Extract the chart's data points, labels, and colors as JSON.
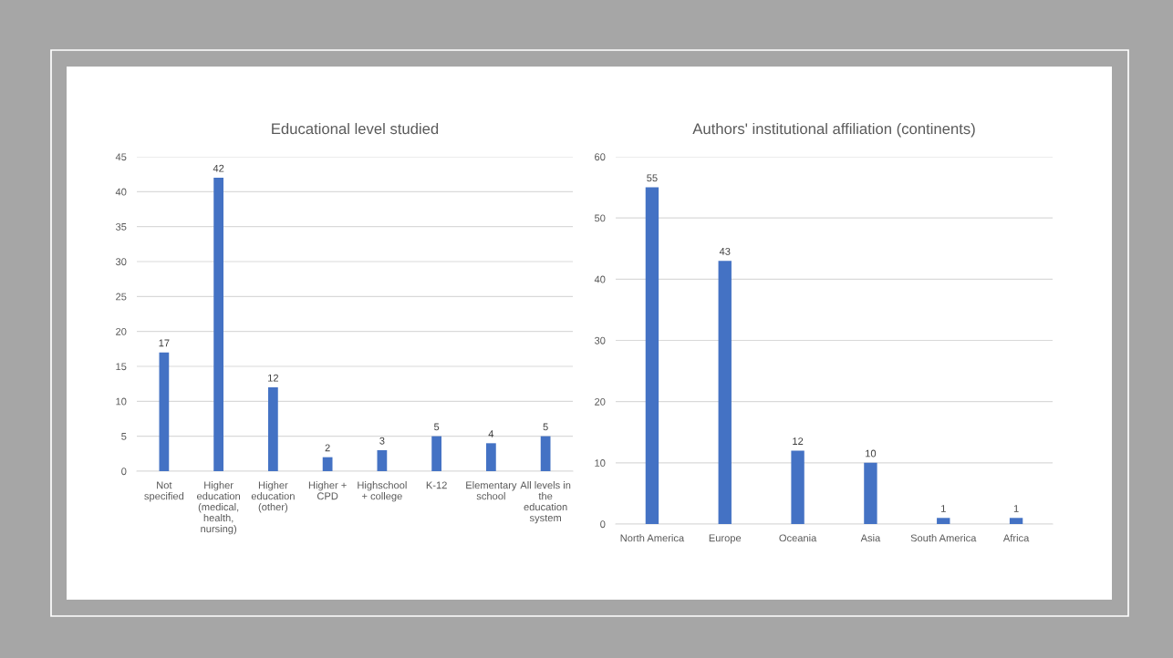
{
  "chart_data": [
    {
      "type": "bar",
      "title": "Educational level studied",
      "categories": [
        "Not\nspecified",
        "Higher\neducation\n(medical,\nhealth,\nnursing)",
        "Higher\neducation\n(other)",
        "Higher +\nCPD",
        "Highschool\n+ college",
        "K-12",
        "Elementary\nschool",
        "All levels in\nthe\neducation\nsystem"
      ],
      "values": [
        17,
        42,
        12,
        2,
        3,
        5,
        4,
        5
      ],
      "color": "#4472c4",
      "ylim": [
        0,
        45
      ],
      "yticks": [
        0,
        5,
        10,
        15,
        20,
        25,
        30,
        35,
        40,
        45
      ],
      "grid": "y",
      "data_labels": true
    },
    {
      "type": "bar",
      "title": "Authors' institutional affiliation (continents)",
      "categories": [
        "North America",
        "Europe",
        "Oceania",
        "Asia",
        "South America",
        "Africa"
      ],
      "values": [
        55,
        43,
        12,
        10,
        1,
        1
      ],
      "color": "#4472c4",
      "ylim": [
        0,
        60
      ],
      "yticks": [
        0,
        10,
        20,
        30,
        40,
        50,
        60
      ],
      "grid": "y",
      "data_labels": true
    }
  ]
}
